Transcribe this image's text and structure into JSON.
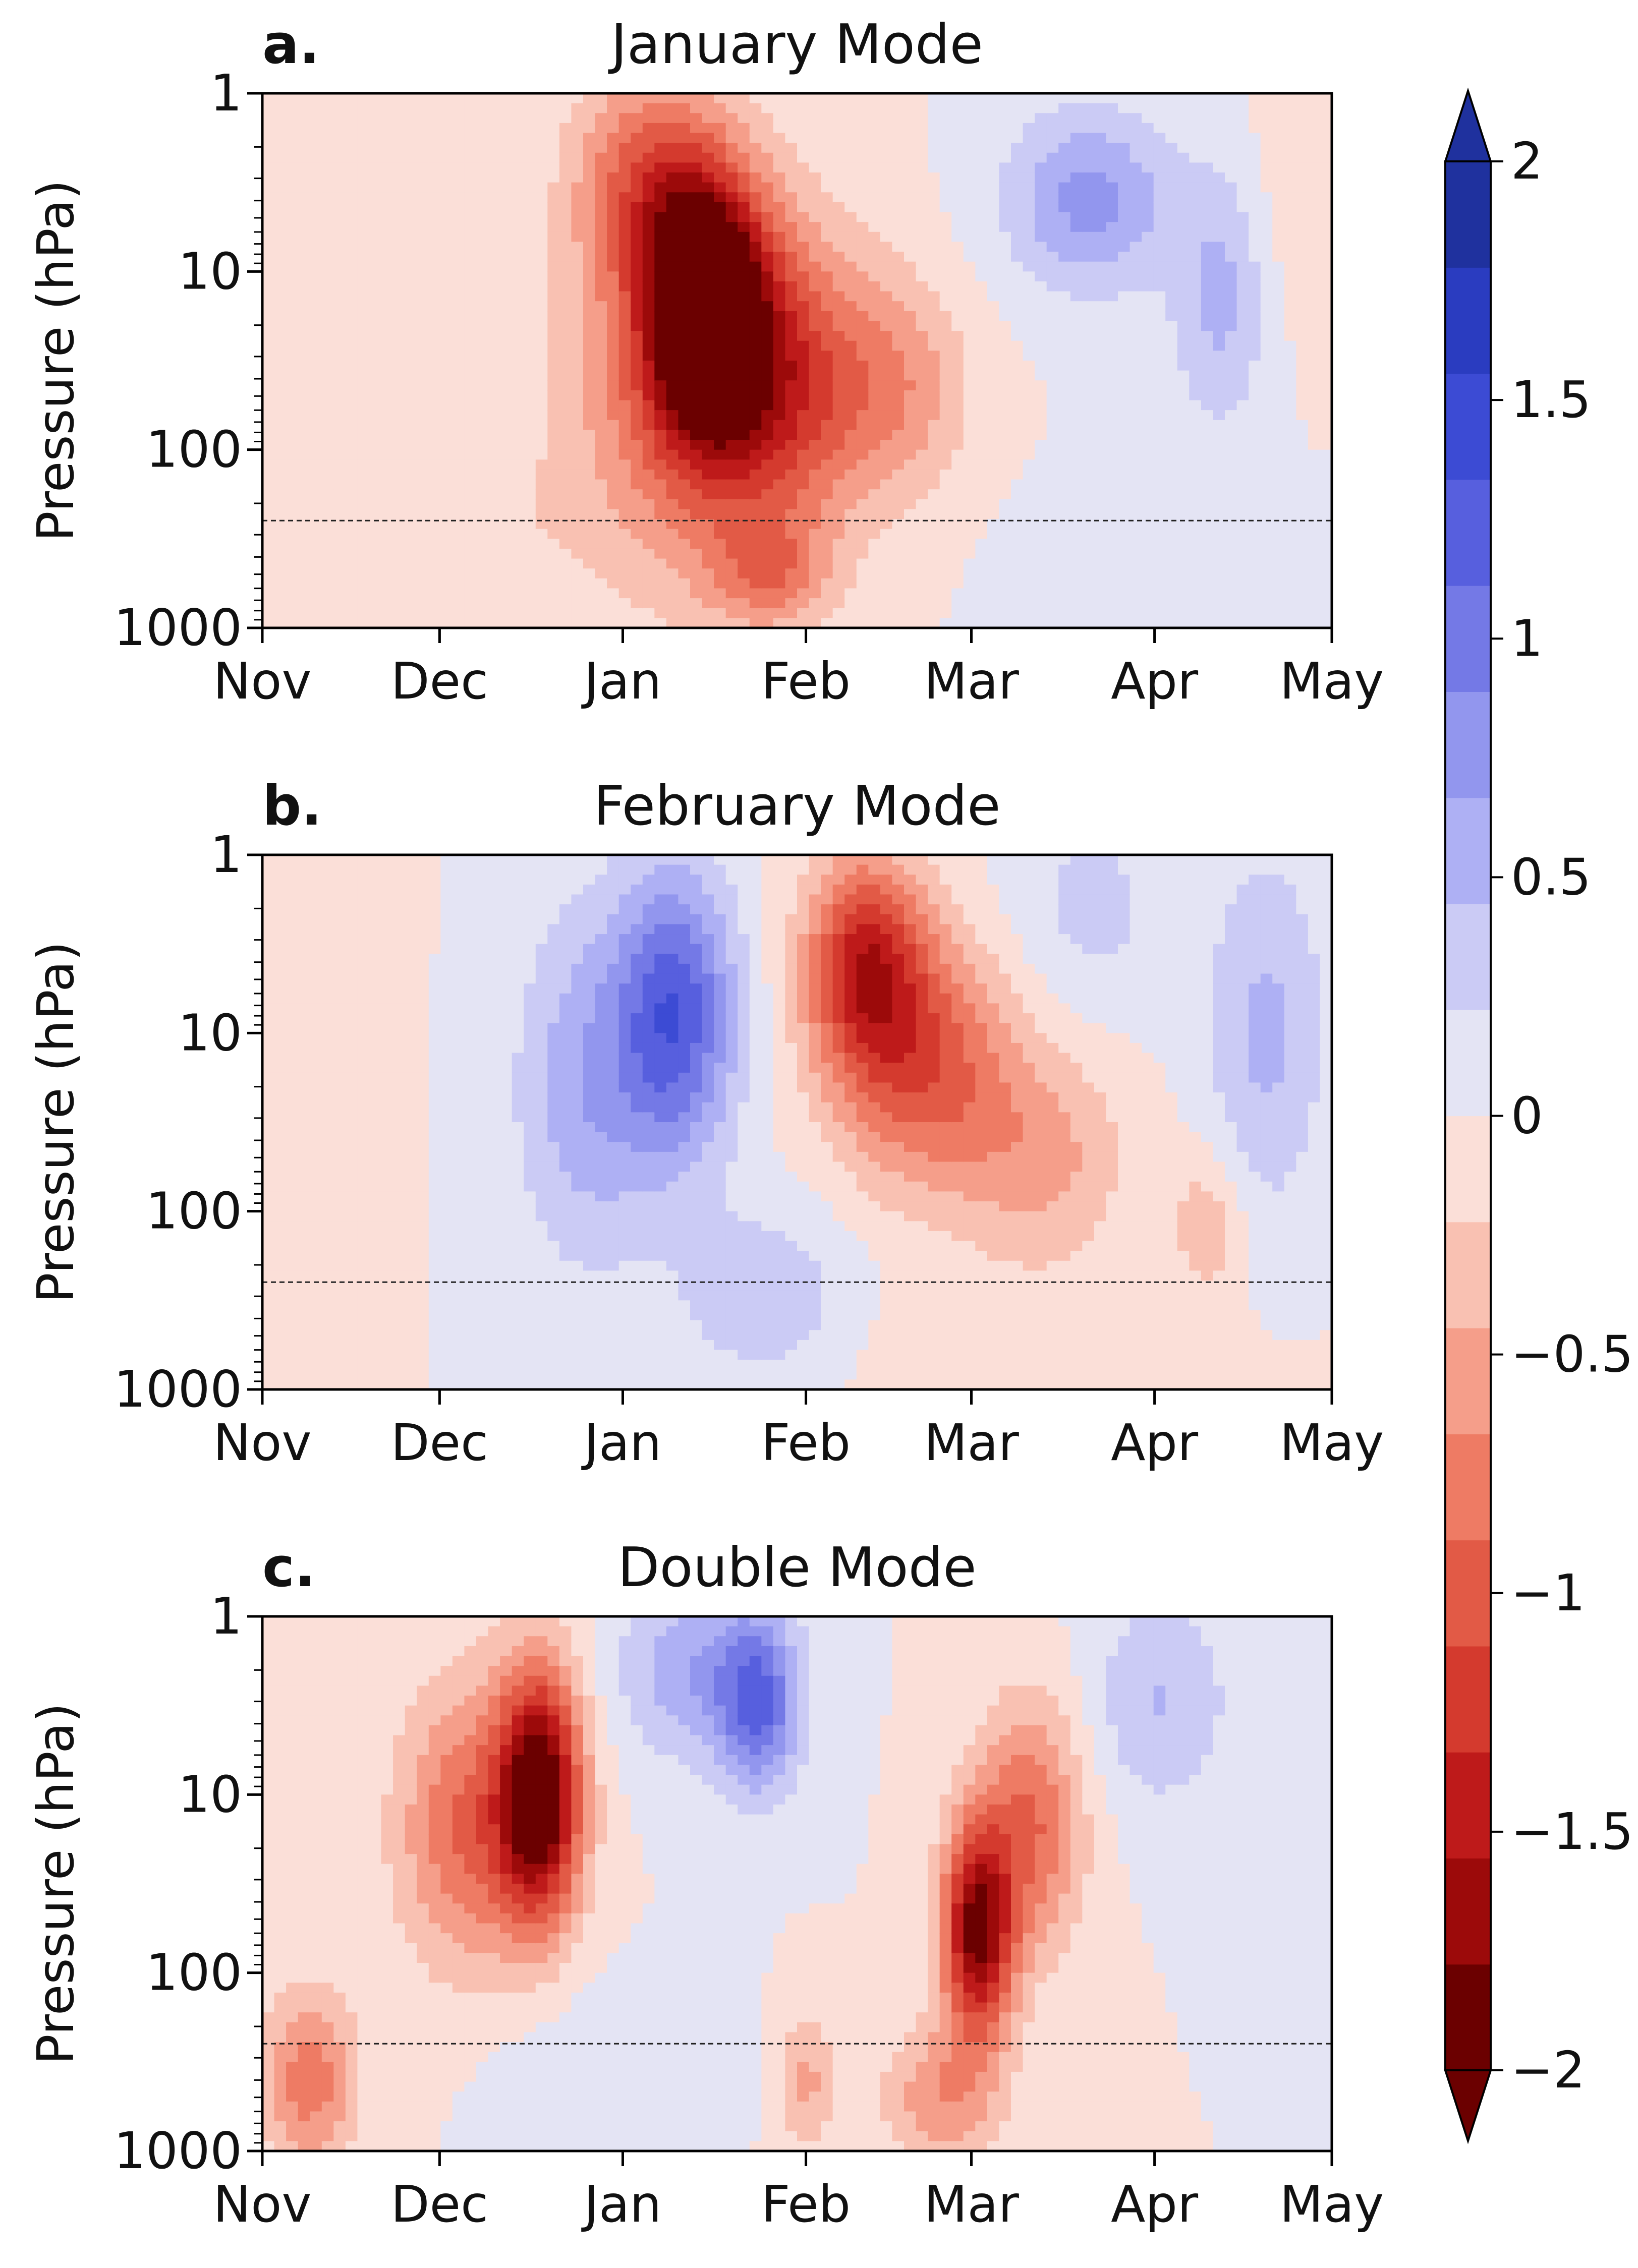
{
  "figure": {
    "y_axis_label": "Pressure (hPa)",
    "colorbar": {
      "colors": [
        "#6b0000",
        "#9c0a0a",
        "#be1a1a",
        "#d43a2e",
        "#e25a46",
        "#ee7b64",
        "#f59e8a",
        "#f9c1b2",
        "#fbdfd8",
        "#e4e4f4",
        "#cbcbf5",
        "#aeb0f4",
        "#9296ee",
        "#7479e6",
        "#575fde",
        "#3c4bd4",
        "#2a3cc0",
        "#1f319e"
      ],
      "tick_values": [
        2,
        1.5,
        1,
        0.5,
        0,
        -0.5,
        -1,
        -1.5,
        -2
      ],
      "tick_labels": [
        "2",
        "1.5",
        "1",
        "0.5",
        "0",
        "−0.5",
        "−1",
        "−1.5",
        "−2"
      ],
      "vmin": -2,
      "vmax": 2,
      "extend": "both"
    }
  },
  "chart_data": [
    {
      "type": "contourf",
      "panel_letter": "a.",
      "title": "January Mode",
      "xlabel": "",
      "ylabel": "Pressure (hPa)",
      "x_tick_labels": [
        "Nov",
        "Dec",
        "Jan",
        "Feb",
        "Mar",
        "Apr",
        "May"
      ],
      "x_tick_days": [
        0,
        30,
        61,
        92,
        120,
        151,
        181
      ],
      "xlim": [
        0,
        181
      ],
      "y_tick_labels": [
        "1",
        "10",
        "100",
        "1000"
      ],
      "y_tick_values": [
        1,
        10,
        100,
        1000
      ],
      "ylim": [
        1000,
        1
      ],
      "yscale": "log",
      "dashed_reference_pressure_hPa": 250,
      "anomaly_centers": [
        {
          "day": 75,
          "p_hPa": 15,
          "value": -2.0,
          "wx": 10,
          "wy": 0.7
        },
        {
          "day": 73,
          "p_hPa": 40,
          "value": -0.9,
          "wx": 20,
          "wy": 1.1
        },
        {
          "day": 88,
          "p_hPa": 45,
          "value": -0.9,
          "wx": 16,
          "wy": 0.8
        },
        {
          "day": 65,
          "p_hPa": 3,
          "value": -0.8,
          "wx": 12,
          "wy": 0.6
        },
        {
          "day": 108,
          "p_hPa": 45,
          "value": -0.5,
          "wx": 12,
          "wy": 0.6
        },
        {
          "day": 86,
          "p_hPa": 500,
          "value": -0.6,
          "wx": 10,
          "wy": 0.3
        },
        {
          "day": 30,
          "p_hPa": 300,
          "value": -0.2,
          "wx": 25,
          "wy": 0.6
        },
        {
          "day": 140,
          "p_hPa": 4,
          "value": 0.75,
          "wx": 14,
          "wy": 0.5
        },
        {
          "day": 162,
          "p_hPa": 15,
          "value": 0.5,
          "wx": 8,
          "wy": 0.7
        },
        {
          "day": 150,
          "p_hPa": 500,
          "value": 0.2,
          "wx": 20,
          "wy": 0.5
        },
        {
          "day": 177,
          "p_hPa": 3,
          "value": -0.2,
          "wx": 8,
          "wy": 0.8
        }
      ]
    },
    {
      "type": "contourf",
      "panel_letter": "b.",
      "title": "February Mode",
      "xlabel": "",
      "ylabel": "Pressure (hPa)",
      "x_tick_labels": [
        "Nov",
        "Dec",
        "Jan",
        "Feb",
        "Mar",
        "Apr",
        "May"
      ],
      "x_tick_days": [
        0,
        30,
        61,
        92,
        120,
        151,
        181
      ],
      "xlim": [
        0,
        181
      ],
      "y_tick_labels": [
        "1",
        "10",
        "100",
        "1000"
      ],
      "y_tick_values": [
        1,
        10,
        100,
        1000
      ],
      "ylim": [
        1000,
        1
      ],
      "yscale": "log",
      "dashed_reference_pressure_hPa": 250,
      "anomaly_centers": [
        {
          "day": 70,
          "p_hPa": 8,
          "value": 1.25,
          "wx": 10,
          "wy": 0.8
        },
        {
          "day": 55,
          "p_hPa": 20,
          "value": 0.6,
          "wx": 12,
          "wy": 1.0
        },
        {
          "day": 85,
          "p_hPa": 300,
          "value": 0.4,
          "wx": 15,
          "wy": 0.5
        },
        {
          "day": 102,
          "p_hPa": 4,
          "value": -1.3,
          "wx": 10,
          "wy": 0.6
        },
        {
          "day": 112,
          "p_hPa": 15,
          "value": -1.0,
          "wx": 15,
          "wy": 0.7
        },
        {
          "day": 132,
          "p_hPa": 50,
          "value": -0.5,
          "wx": 14,
          "wy": 0.6
        },
        {
          "day": 160,
          "p_hPa": 120,
          "value": -0.4,
          "wx": 6,
          "wy": 0.4
        },
        {
          "day": 170,
          "p_hPa": 10,
          "value": 0.5,
          "wx": 10,
          "wy": 1.0
        },
        {
          "day": 140,
          "p_hPa": 2,
          "value": 0.3,
          "wx": 14,
          "wy": 0.6
        },
        {
          "day": 10,
          "p_hPa": 10,
          "value": -0.15,
          "wx": 10,
          "wy": 1.2
        },
        {
          "day": 130,
          "p_hPa": 700,
          "value": -0.2,
          "wx": 30,
          "wy": 0.4
        }
      ]
    },
    {
      "type": "contourf",
      "panel_letter": "c.",
      "title": "Double Mode",
      "xlabel": "",
      "ylabel": "Pressure (hPa)",
      "x_tick_labels": [
        "Nov",
        "Dec",
        "Jan",
        "Feb",
        "Mar",
        "Apr",
        "May"
      ],
      "x_tick_days": [
        0,
        30,
        61,
        92,
        120,
        151,
        181
      ],
      "xlim": [
        0,
        181
      ],
      "y_tick_labels": [
        "1",
        "10",
        "100",
        "1000"
      ],
      "y_tick_values": [
        1,
        10,
        100,
        1000
      ],
      "ylim": [
        1000,
        1
      ],
      "yscale": "log",
      "dashed_reference_pressure_hPa": 250,
      "anomaly_centers": [
        {
          "day": 47,
          "p_hPa": 10,
          "value": -2.0,
          "wx": 7,
          "wy": 0.7
        },
        {
          "day": 35,
          "p_hPa": 15,
          "value": -0.9,
          "wx": 12,
          "wy": 0.8
        },
        {
          "day": 8,
          "p_hPa": 400,
          "value": -0.8,
          "wx": 8,
          "wy": 0.5
        },
        {
          "day": 121,
          "p_hPa": 60,
          "value": -1.8,
          "wx": 6,
          "wy": 0.6
        },
        {
          "day": 130,
          "p_hPa": 15,
          "value": -0.9,
          "wx": 9,
          "wy": 0.7
        },
        {
          "day": 115,
          "p_hPa": 500,
          "value": -0.6,
          "wx": 10,
          "wy": 0.4
        },
        {
          "day": 84,
          "p_hPa": 3,
          "value": 1.1,
          "wx": 7,
          "wy": 0.5
        },
        {
          "day": 72,
          "p_hPa": 2,
          "value": 0.6,
          "wx": 12,
          "wy": 0.5
        },
        {
          "day": 152,
          "p_hPa": 3,
          "value": 0.45,
          "wx": 12,
          "wy": 0.6
        },
        {
          "day": 92,
          "p_hPa": 400,
          "value": -0.5,
          "wx": 5,
          "wy": 0.4
        },
        {
          "day": 60,
          "p_hPa": 300,
          "value": 0.2,
          "wx": 20,
          "wy": 0.4
        }
      ]
    }
  ]
}
